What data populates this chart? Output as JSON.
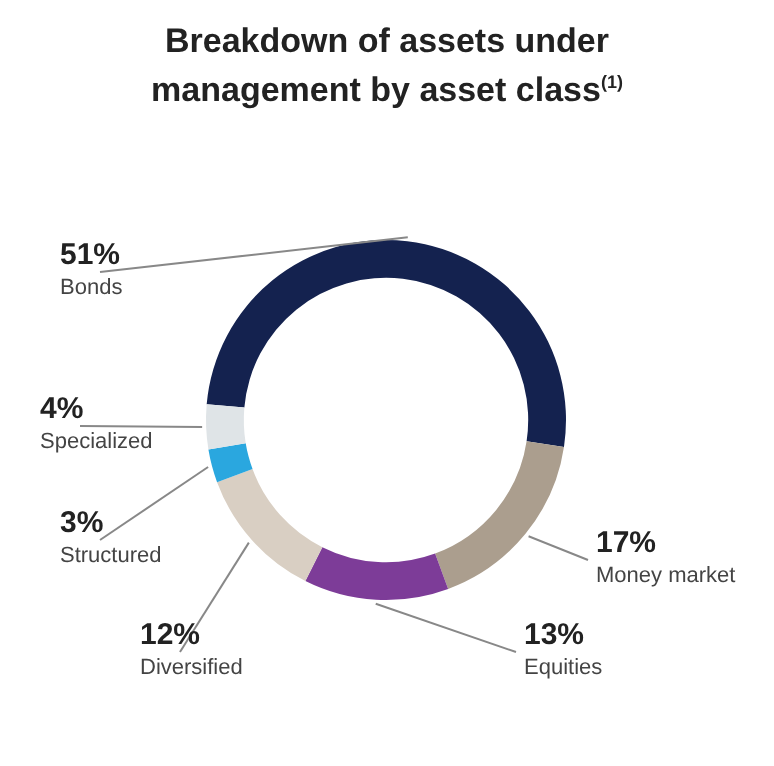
{
  "chart_data": {
    "type": "donut",
    "title": "Breakdown of assets under management by asset class$^{(1)}$",
    "categories": [
      "Bonds",
      "Money market",
      "Equities",
      "Diversified",
      "Structured",
      "Specialized"
    ],
    "values": [
      51,
      17,
      13,
      12,
      3,
      4
    ],
    "value_labels": [
      "51%",
      "17%",
      "13%",
      "12%",
      "3%",
      "4%"
    ],
    "colors": [
      "#14224f",
      "#ab9e8e",
      "#7d3c98",
      "#d9cfc3",
      "#2aa7df",
      "#dfe4e7"
    ],
    "legend": false
  }
}
